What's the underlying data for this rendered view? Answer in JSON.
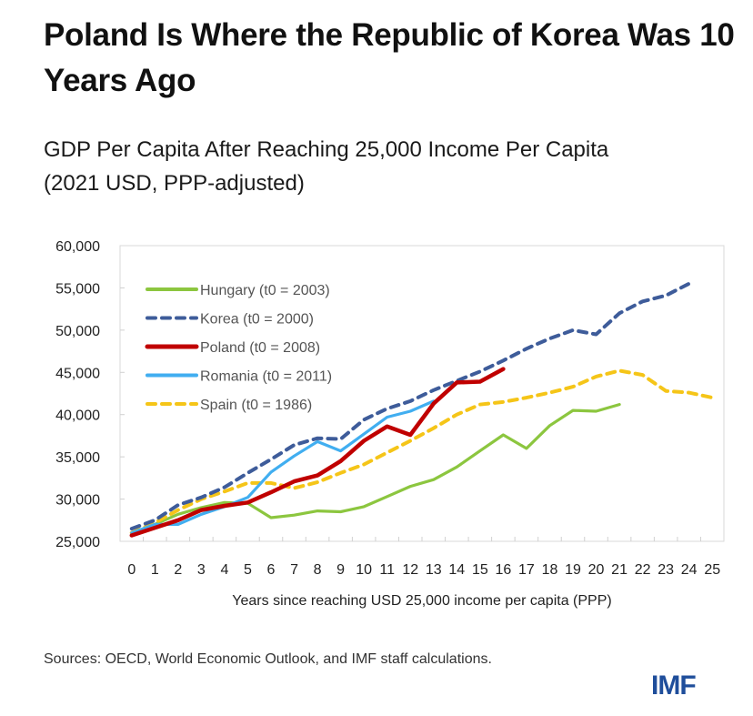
{
  "header": {
    "title": "Poland Is Where the Republic of Korea Was 10 Years Ago",
    "subtitle_line1": "GDP Per Capita After Reaching 25,000 Income Per Capita",
    "subtitle_line2": "(2021 USD, PPP-adjusted)"
  },
  "footer": {
    "source": "Sources: OECD, World Economic Outlook, and IMF staff calculations.",
    "logo": "IMF",
    "logo_color": "#1f4e9b"
  },
  "chart_data": {
    "type": "line",
    "title": "GDP Per Capita After Reaching 25,000 Income Per Capita (2021 USD, PPP-adjusted)",
    "xlabel": "Years since reaching USD 25,000 income per capita (PPP)",
    "ylabel": "",
    "x": [
      0,
      1,
      2,
      3,
      4,
      5,
      6,
      7,
      8,
      9,
      10,
      11,
      12,
      13,
      14,
      15,
      16,
      17,
      18,
      19,
      20,
      21,
      22,
      23,
      24,
      25
    ],
    "x_tick_labels": [
      "0",
      "1",
      "2",
      "3",
      "4",
      "5",
      "6",
      "7",
      "8",
      "9",
      "10",
      "11",
      "12",
      "13",
      "14",
      "15",
      "16",
      "17",
      "18",
      "19",
      "20",
      "21",
      "22",
      "23",
      "24",
      "25"
    ],
    "ylim": [
      25000,
      60000
    ],
    "y_ticks": [
      25000,
      30000,
      35000,
      40000,
      45000,
      50000,
      55000,
      60000
    ],
    "y_tick_labels": [
      "25,000",
      "30,000",
      "35,000",
      "40,000",
      "45,000",
      "50,000",
      "55,000",
      "60,000"
    ],
    "grid": false,
    "legend_position": "top-left",
    "series": [
      {
        "name": "Hungary (t0 = 2003)",
        "color": "#8cc63f",
        "style": "solid",
        "values": [
          25800,
          27000,
          28200,
          29000,
          29600,
          29500,
          27800,
          28100,
          28600,
          28500,
          29100,
          30300,
          31500,
          32300,
          33800,
          35700,
          37600,
          36000,
          38700,
          40500,
          40400,
          41200
        ]
      },
      {
        "name": "Korea (t0 = 2000)",
        "color": "#3e5c9a",
        "style": "dashed",
        "values": [
          26500,
          27500,
          29300,
          30200,
          31400,
          33100,
          34700,
          36400,
          37200,
          37100,
          39400,
          40700,
          41600,
          42900,
          44000,
          45100,
          46400,
          47800,
          49000,
          50000,
          49500,
          52000,
          53400,
          54100,
          55500
        ]
      },
      {
        "name": "Poland (t0 = 2008)",
        "color": "#c00000",
        "style": "solid",
        "values": [
          25700,
          26600,
          27500,
          28700,
          29200,
          29600,
          30800,
          32100,
          32800,
          34500,
          36900,
          38600,
          37600,
          41300,
          43800,
          43900,
          45400
        ]
      },
      {
        "name": "Romania (t0 = 2011)",
        "color": "#41aef0",
        "style": "solid",
        "values": [
          26000,
          27000,
          27000,
          28200,
          29100,
          30200,
          33200,
          35100,
          36800,
          35700,
          37700,
          39700,
          40400,
          41600
        ]
      },
      {
        "name": "Spain (t0 = 1986)",
        "color": "#f5c518",
        "style": "dashed",
        "values": [
          26000,
          27200,
          28700,
          30000,
          30900,
          31900,
          31900,
          31300,
          32000,
          33100,
          34100,
          35500,
          36900,
          38400,
          40000,
          41200,
          41500,
          42000,
          42600,
          43300,
          44500,
          45200,
          44700,
          42800,
          42600,
          42000
        ]
      }
    ]
  }
}
